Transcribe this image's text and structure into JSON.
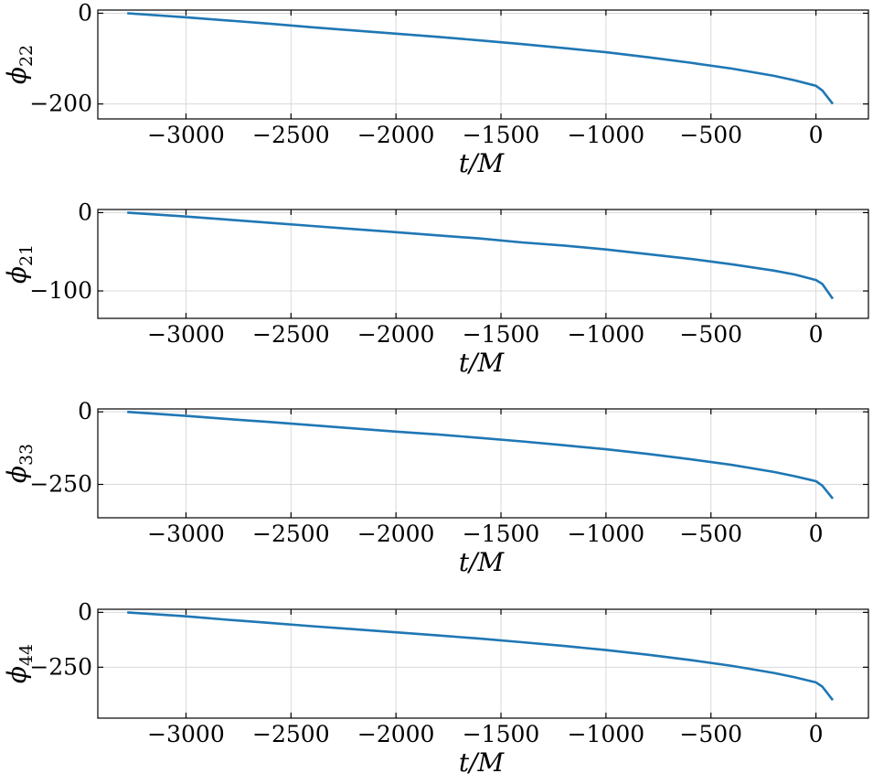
{
  "chart_data": [
    {
      "type": "line",
      "ylabel_symbol": "ϕ",
      "ylabel_subscript": "22",
      "xlabel": "t/M",
      "xlim": [
        -3420,
        250
      ],
      "ylim": [
        -233,
        7
      ],
      "xticks": [
        -3000,
        -2500,
        -2000,
        -1500,
        -1000,
        -500,
        0
      ],
      "xtick_labels": [
        "−3000",
        "−2500",
        "−2000",
        "−1500",
        "−1000",
        "−500",
        "0"
      ],
      "yticks": [
        0,
        -200
      ],
      "ytick_labels": [
        "0",
        "−200"
      ],
      "grid": true,
      "series": [
        {
          "color": "#1f77b4",
          "x": [
            -3280,
            -3000,
            -2800,
            -2600,
            -2400,
            -2200,
            -2000,
            -1800,
            -1600,
            -1400,
            -1200,
            -1000,
            -800,
            -600,
            -400,
            -200,
            -100,
            0,
            30,
            80
          ],
          "y": [
            0,
            -9,
            -16,
            -23,
            -31,
            -38,
            -45,
            -52,
            -60,
            -68,
            -77,
            -86,
            -97,
            -109,
            -122,
            -138,
            -148,
            -160,
            -170,
            -200
          ]
        }
      ]
    },
    {
      "type": "line",
      "ylabel_symbol": "ϕ",
      "ylabel_subscript": "21",
      "xlabel": "t/M",
      "xlim": [
        -3420,
        250
      ],
      "ylim": [
        -135,
        4
      ],
      "xticks": [
        -3000,
        -2500,
        -2000,
        -1500,
        -1000,
        -500,
        0
      ],
      "xtick_labels": [
        "−3000",
        "−2500",
        "−2000",
        "−1500",
        "−1000",
        "−500",
        "0"
      ],
      "yticks": [
        0,
        -100
      ],
      "ytick_labels": [
        "0",
        "−100"
      ],
      "grid": true,
      "series": [
        {
          "color": "#1f77b4",
          "x": [
            -3280,
            -3000,
            -2800,
            -2600,
            -2400,
            -2200,
            -2000,
            -1800,
            -1600,
            -1400,
            -1200,
            -1000,
            -800,
            -600,
            -400,
            -200,
            -100,
            0,
            30,
            80
          ],
          "y": [
            0,
            -5,
            -9,
            -13,
            -17,
            -21,
            -25,
            -29,
            -33,
            -38,
            -42,
            -47,
            -53,
            -59,
            -66,
            -74,
            -79,
            -86,
            -91,
            -110
          ]
        }
      ]
    },
    {
      "type": "line",
      "ylabel_symbol": "ϕ",
      "ylabel_subscript": "33",
      "xlabel": "t/M",
      "xlim": [
        -3420,
        250
      ],
      "ylim": [
        -365,
        10
      ],
      "xticks": [
        -3000,
        -2500,
        -2000,
        -1500,
        -1000,
        -500,
        0
      ],
      "xtick_labels": [
        "−3000",
        "−2500",
        "−2000",
        "−1500",
        "−1000",
        "−500",
        "0"
      ],
      "yticks": [
        0,
        -250
      ],
      "ytick_labels": [
        "0",
        "−250"
      ],
      "grid": true,
      "series": [
        {
          "color": "#1f77b4",
          "x": [
            -3280,
            -3000,
            -2800,
            -2600,
            -2400,
            -2200,
            -2000,
            -1800,
            -1600,
            -1400,
            -1200,
            -1000,
            -800,
            -600,
            -400,
            -200,
            -100,
            0,
            30,
            80
          ],
          "y": [
            0,
            -14,
            -25,
            -35,
            -46,
            -57,
            -68,
            -78,
            -90,
            -102,
            -115,
            -129,
            -145,
            -163,
            -183,
            -207,
            -222,
            -239,
            -254,
            -299
          ]
        }
      ]
    },
    {
      "type": "line",
      "ylabel_symbol": "ϕ",
      "ylabel_subscript": "44",
      "xlabel": "t/M",
      "xlim": [
        -3420,
        250
      ],
      "ylim": [
        -482,
        14
      ],
      "xticks": [
        -3000,
        -2500,
        -2000,
        -1500,
        -1000,
        -500,
        0
      ],
      "xtick_labels": [
        "−3000",
        "−2500",
        "−2000",
        "−1500",
        "−1000",
        "−500",
        "0"
      ],
      "yticks": [
        0,
        -250
      ],
      "ytick_labels": [
        "0",
        "−250"
      ],
      "grid": true,
      "series": [
        {
          "color": "#1f77b4",
          "x": [
            -3280,
            -3000,
            -2800,
            -2600,
            -2400,
            -2200,
            -2000,
            -1800,
            -1600,
            -1400,
            -1200,
            -1000,
            -800,
            -600,
            -400,
            -200,
            -100,
            0,
            30,
            80
          ],
          "y": [
            0,
            -18,
            -34,
            -48,
            -63,
            -77,
            -91,
            -105,
            -120,
            -136,
            -153,
            -172,
            -193,
            -217,
            -244,
            -276,
            -296,
            -319,
            -338,
            -400
          ]
        }
      ]
    }
  ]
}
